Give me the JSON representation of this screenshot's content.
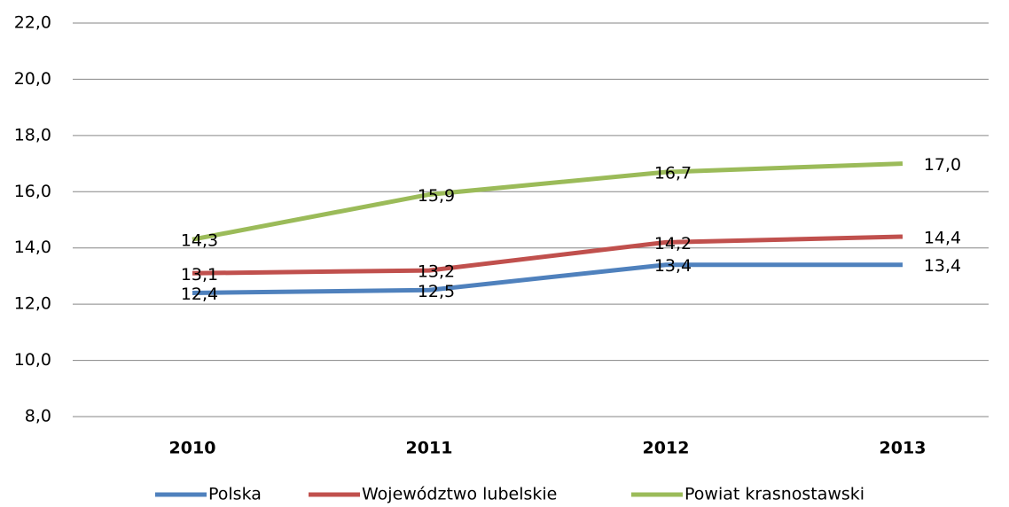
{
  "chart_data": {
    "type": "line",
    "categories": [
      "2010",
      "2011",
      "2012",
      "2013"
    ],
    "series": [
      {
        "name": "Polska",
        "color": "#4f81bd",
        "values": [
          12.4,
          12.5,
          13.4,
          13.4
        ],
        "value_labels": [
          "12,4",
          "12,5",
          "13,4",
          "13,4"
        ]
      },
      {
        "name": "Województwo lubelskie",
        "color": "#c0504d",
        "values": [
          13.1,
          13.2,
          14.2,
          14.4
        ],
        "value_labels": [
          "13,1",
          "13,2",
          "14,2",
          "14,4"
        ]
      },
      {
        "name": "Powiat krasnostawski",
        "color": "#9bbb59",
        "values": [
          14.3,
          15.9,
          16.7,
          17.0
        ],
        "value_labels": [
          "14,3",
          "15,9",
          "16,7",
          "17,0"
        ]
      }
    ],
    "ylim": [
      8,
      22
    ],
    "yticks": [
      {
        "value": 8,
        "label": "8,0"
      },
      {
        "value": 10,
        "label": "10,0"
      },
      {
        "value": 12,
        "label": "12,0"
      },
      {
        "value": 14,
        "label": "14,0"
      },
      {
        "value": 16,
        "label": "16,0"
      },
      {
        "value": 18,
        "label": "18,0"
      },
      {
        "value": 20,
        "label": "20,0"
      },
      {
        "value": 22,
        "label": "22,0"
      }
    ],
    "grid": true,
    "legend": "bottom"
  }
}
